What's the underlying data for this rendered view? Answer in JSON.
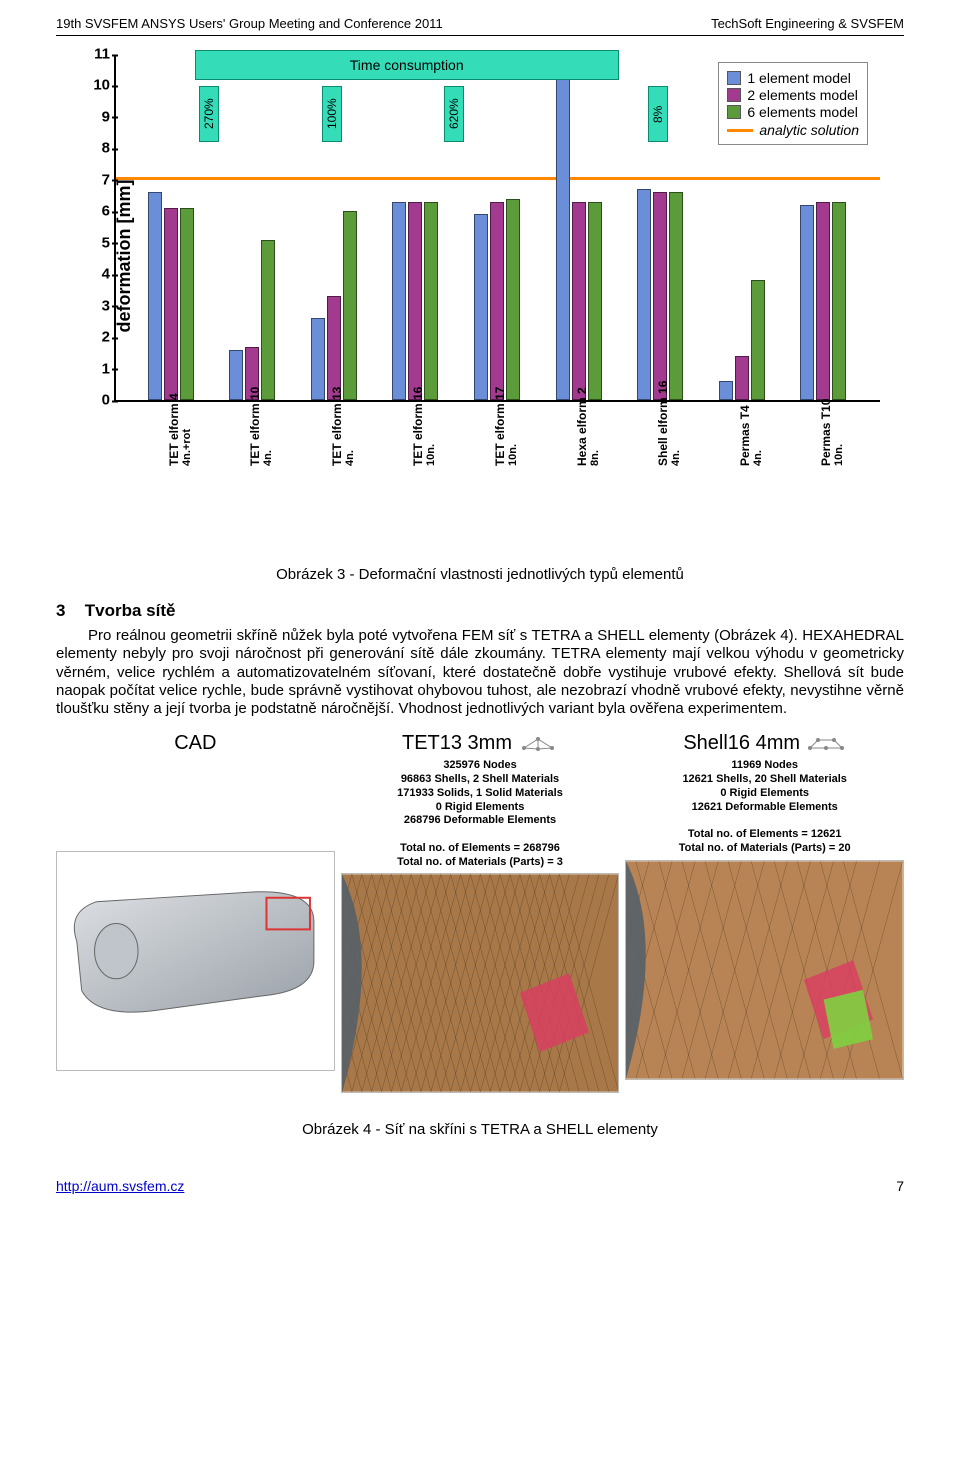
{
  "header": {
    "left": "19th SVSFEM ANSYS Users' Group Meeting and Conference 2011",
    "right": "TechSoft Engineering & SVSFEM"
  },
  "chart": {
    "ylabel": "deformation [mm]",
    "ylim": [
      0,
      11
    ],
    "ytick_step": 1,
    "analytic_y": 7.0,
    "analytic_color": "#ff8800",
    "legend": {
      "items": [
        {
          "label": "1 element model",
          "color": "#6a8fd8"
        },
        {
          "label": "2 elements model",
          "color": "#a23b8f"
        },
        {
          "label": "6 elements model",
          "color": "#5b9b3a"
        }
      ],
      "analytic_label": "analytic solution",
      "analytic_color": "#ff8800"
    },
    "time_label": "Time consumption",
    "time_balloons": [
      {
        "pct": "270%",
        "span_start": 0,
        "span_end": 1
      },
      {
        "pct": "100%",
        "span_start": 2,
        "span_end": 2
      },
      {
        "pct": "620%",
        "span_start": 3,
        "span_end": 4
      },
      {
        "pct": "8%",
        "span_start": 6,
        "span_end": 6
      }
    ],
    "groups": [
      {
        "label_a": "TET elform 4",
        "label_b": "4n.+rot",
        "values": [
          6.6,
          6.1,
          6.1
        ]
      },
      {
        "label_a": "TET elform 10",
        "label_b": "4n.",
        "values": [
          1.6,
          1.7,
          5.1
        ]
      },
      {
        "label_a": "TET elform 13",
        "label_b": "4n.",
        "values": [
          2.6,
          3.3,
          6.0
        ]
      },
      {
        "label_a": "TET elform 16",
        "label_b": "10n.",
        "values": [
          6.3,
          6.3,
          6.3
        ]
      },
      {
        "label_a": "TET elform 17",
        "label_b": "10n.",
        "values": [
          5.9,
          6.3,
          6.4
        ]
      },
      {
        "label_a": "Hexa elform 2",
        "label_b": "8n.",
        "values": [
          10.6,
          6.3,
          6.3
        ]
      },
      {
        "label_a": "Shell elform 16",
        "label_b": "4n.",
        "values": [
          6.7,
          6.6,
          6.6
        ]
      },
      {
        "label_a": "Permas T4",
        "label_b": "4n.",
        "values": [
          0.6,
          1.4,
          3.8
        ]
      },
      {
        "label_a": "Permas T10",
        "label_b": "10n.",
        "values": [
          6.2,
          6.3,
          6.3
        ]
      }
    ],
    "colors": [
      "#6a8fd8",
      "#a23b8f",
      "#5b9b3a"
    ]
  },
  "caption1": "Obrázek 3 - Deformační vlastnosti jednotlivých typů elementů",
  "section": {
    "num": "3",
    "title": "Tvorba sítě"
  },
  "body_text": "Pro reálnou geometrii skříně nůžek byla poté vytvořena FEM síť s TETRA a SHELL elementy (Obrázek 4). HEXAHEDRAL elementy nebyly pro svoji náročnost při generování sítě dále zkoumány. TETRA elementy mají velkou výhodu v geometricky věrném, velice rychlém a automatizovatelném síťovaní, které dostatečně dobře vystihuje vrubové efekty. Shellová sít bude naopak počítat velice rychle, bude správně vystihovat ohybovou tuhost, ale nezobrazí vhodně vrubové efekty, nevystihne věrně tloušťku stěny a její tvorba je podstatně náročnější. Vhodnost jednotlivých variant byla ověřena experimentem.",
  "fig2": {
    "panels": [
      {
        "title": "CAD",
        "stats": []
      },
      {
        "title": "TET13 3mm",
        "stats": [
          "325976 Nodes",
          "96863 Shells,   2 Shell Materials",
          "171933 Solids,   1 Solid Materials",
          "0 Rigid Elements",
          "268796 Deformable Elements",
          "",
          "Total no. of Elements = 268796",
          "Total no. of Materials (Parts) = 3"
        ]
      },
      {
        "title": "Shell16 4mm",
        "stats": [
          "11969 Nodes",
          "12621 Shells,   20 Shell Materials",
          "0 Rigid Elements",
          "12621 Deformable Elements",
          "",
          "Total no. of Elements = 12621",
          "Total no. of Materials (Parts) = 20"
        ]
      }
    ]
  },
  "caption2": "Obrázek 4 - Síť na skříni s TETRA a SHELL elementy",
  "footer": {
    "url": "http://aum.svsfem.cz",
    "page": "7"
  }
}
